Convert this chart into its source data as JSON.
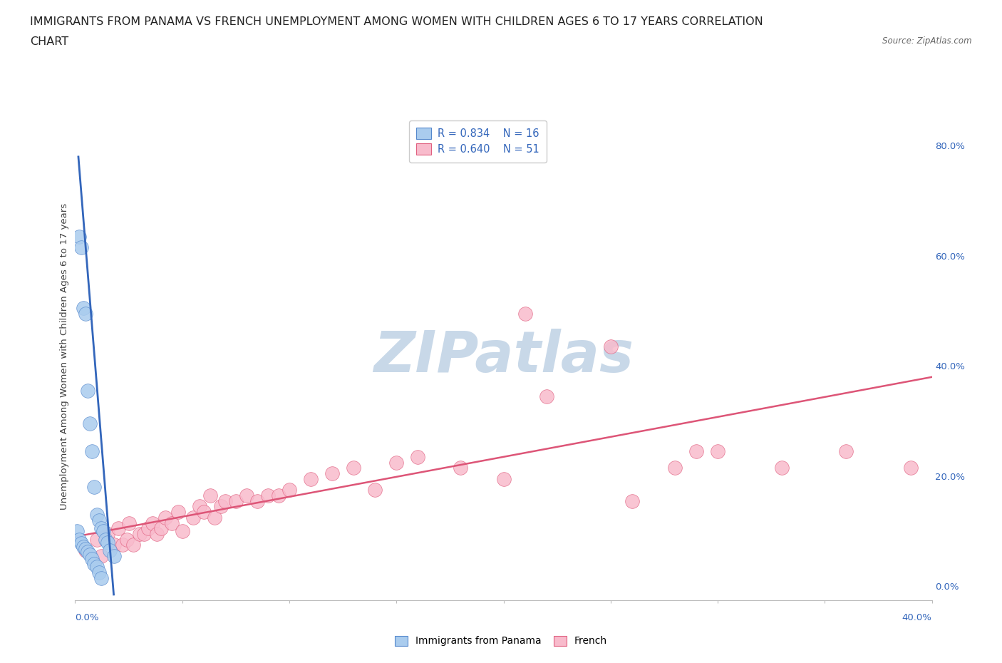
{
  "title_line1": "IMMIGRANTS FROM PANAMA VS FRENCH UNEMPLOYMENT AMONG WOMEN WITH CHILDREN AGES 6 TO 17 YEARS CORRELATION",
  "title_line2": "CHART",
  "source": "Source: ZipAtlas.com",
  "ylabel": "Unemployment Among Women with Children Ages 6 to 17 years",
  "xlabel_bottom_left": "0.0%",
  "xlabel_bottom_right": "40.0%",
  "legend_blue_r": "R = 0.834",
  "legend_blue_n": "N = 16",
  "legend_pink_r": "R = 0.640",
  "legend_pink_n": "N = 51",
  "legend_label_blue": "Immigrants from Panama",
  "legend_label_pink": "French",
  "right_ytick_vals": [
    0.0,
    0.2,
    0.4,
    0.6,
    0.8
  ],
  "right_ytick_labels": [
    "0.0%",
    "20.0%",
    "40.0%",
    "60.0%",
    "80.0%"
  ],
  "xlim": [
    0.0,
    0.4
  ],
  "ylim": [
    -0.025,
    0.86
  ],
  "blue_scatter_x": [
    0.002,
    0.003,
    0.004,
    0.005,
    0.006,
    0.007,
    0.008,
    0.009,
    0.01,
    0.011,
    0.012,
    0.013,
    0.014,
    0.015,
    0.016,
    0.018
  ],
  "blue_scatter_y": [
    0.635,
    0.615,
    0.505,
    0.495,
    0.355,
    0.295,
    0.245,
    0.18,
    0.13,
    0.12,
    0.105,
    0.1,
    0.085,
    0.08,
    0.065,
    0.055
  ],
  "blue_extra_x": [
    0.001,
    0.002,
    0.003,
    0.004,
    0.005,
    0.006,
    0.007,
    0.008,
    0.009,
    0.01,
    0.011,
    0.012
  ],
  "blue_extra_y": [
    0.1,
    0.085,
    0.078,
    0.072,
    0.068,
    0.062,
    0.058,
    0.05,
    0.04,
    0.035,
    0.025,
    0.015
  ],
  "blue_line_x": [
    0.0015,
    0.018
  ],
  "blue_line_y": [
    0.78,
    -0.015
  ],
  "pink_scatter_x": [
    0.005,
    0.01,
    0.012,
    0.015,
    0.018,
    0.02,
    0.022,
    0.024,
    0.025,
    0.027,
    0.03,
    0.032,
    0.034,
    0.036,
    0.038,
    0.04,
    0.042,
    0.045,
    0.048,
    0.05,
    0.055,
    0.058,
    0.06,
    0.063,
    0.065,
    0.068,
    0.07,
    0.075,
    0.08,
    0.085,
    0.09,
    0.095,
    0.1,
    0.11,
    0.12,
    0.13,
    0.14,
    0.15,
    0.16,
    0.18,
    0.2,
    0.21,
    0.22,
    0.25,
    0.26,
    0.28,
    0.29,
    0.3,
    0.33,
    0.36,
    0.39
  ],
  "pink_scatter_y": [
    0.065,
    0.085,
    0.055,
    0.095,
    0.075,
    0.105,
    0.075,
    0.085,
    0.115,
    0.075,
    0.095,
    0.095,
    0.105,
    0.115,
    0.095,
    0.105,
    0.125,
    0.115,
    0.135,
    0.1,
    0.125,
    0.145,
    0.135,
    0.165,
    0.125,
    0.145,
    0.155,
    0.155,
    0.165,
    0.155,
    0.165,
    0.165,
    0.175,
    0.195,
    0.205,
    0.215,
    0.175,
    0.225,
    0.235,
    0.215,
    0.195,
    0.495,
    0.345,
    0.435,
    0.155,
    0.215,
    0.245,
    0.245,
    0.215,
    0.245,
    0.215
  ],
  "pink_line_x": [
    0.0,
    0.4
  ],
  "pink_line_y": [
    0.09,
    0.38
  ],
  "blue_color": "#AACCEE",
  "blue_edge_color": "#5588CC",
  "pink_color": "#F8BBCC",
  "pink_edge_color": "#E06080",
  "blue_line_color": "#3366BB",
  "pink_line_color": "#DD5577",
  "watermark_text": "ZIPatlas",
  "watermark_color": "#C8D8E8",
  "grid_color": "#DDDDDD",
  "title_fontsize": 11.5,
  "axis_fontsize": 9.5,
  "legend_fontsize": 10.5,
  "source_fontsize": 8.5
}
